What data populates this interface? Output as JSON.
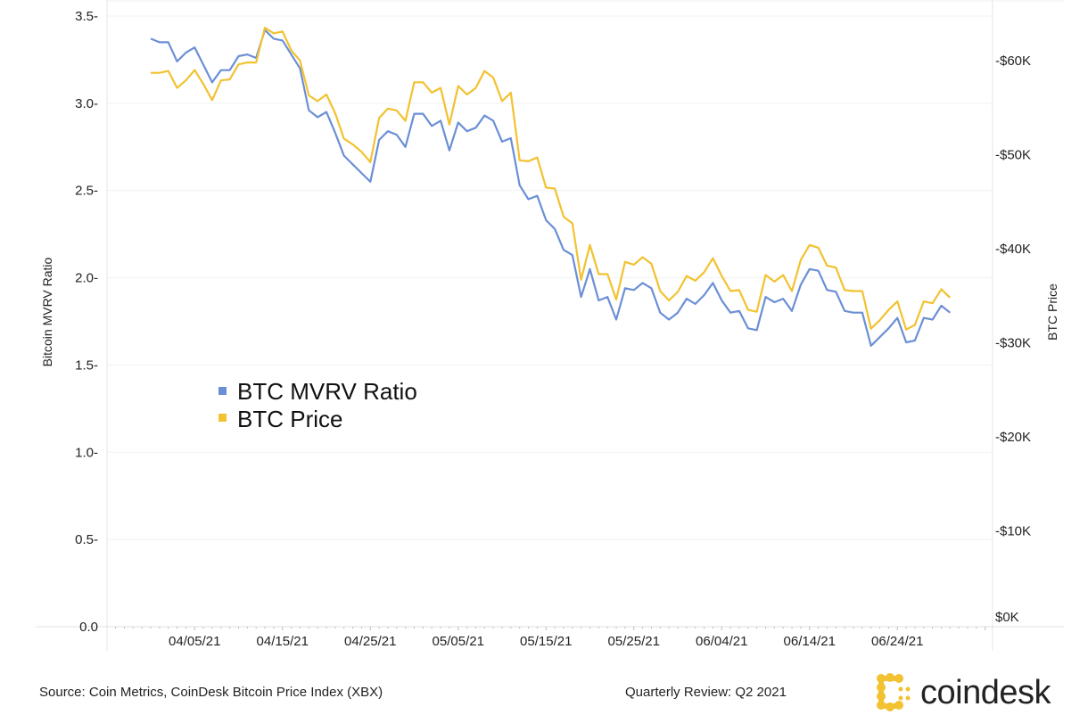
{
  "chart_data": {
    "type": "line",
    "title": "",
    "xlabel": "",
    "ylabel": "Bitcoin MVRV Ratio",
    "y2label": "BTC Price",
    "ylim": [
      0,
      3.5
    ],
    "y2lim": [
      0,
      60
    ],
    "y2_unit": "$K",
    "grid": true,
    "legend_position": "center-left",
    "x_tick_labels": [
      "04/05/21",
      "04/15/21",
      "04/25/21",
      "05/05/21",
      "05/15/21",
      "05/25/21",
      "06/04/21",
      "06/14/21",
      "06/24/21"
    ],
    "y_tick_labels": [
      "0.0",
      "0.5",
      "1.0",
      "1.5",
      "2.0",
      "2.5",
      "3.0",
      "3.5"
    ],
    "y2_tick_labels": [
      "$0K",
      "$10K",
      "$20K",
      "$30K",
      "$40K",
      "$50K",
      "$60K"
    ],
    "x": [
      "03/31/21",
      "04/01/21",
      "04/02/21",
      "04/03/21",
      "04/04/21",
      "04/05/21",
      "04/06/21",
      "04/07/21",
      "04/08/21",
      "04/09/21",
      "04/10/21",
      "04/11/21",
      "04/12/21",
      "04/13/21",
      "04/14/21",
      "04/15/21",
      "04/16/21",
      "04/17/21",
      "04/18/21",
      "04/19/21",
      "04/20/21",
      "04/21/21",
      "04/22/21",
      "04/23/21",
      "04/24/21",
      "04/25/21",
      "04/26/21",
      "04/27/21",
      "04/28/21",
      "04/29/21",
      "04/30/21",
      "05/01/21",
      "05/02/21",
      "05/03/21",
      "05/04/21",
      "05/05/21",
      "05/06/21",
      "05/07/21",
      "05/08/21",
      "05/09/21",
      "05/10/21",
      "05/11/21",
      "05/12/21",
      "05/13/21",
      "05/14/21",
      "05/15/21",
      "05/16/21",
      "05/17/21",
      "05/18/21",
      "05/19/21",
      "05/20/21",
      "05/21/21",
      "05/22/21",
      "05/23/21",
      "05/24/21",
      "05/25/21",
      "05/26/21",
      "05/27/21",
      "05/28/21",
      "05/29/21",
      "05/30/21",
      "05/31/21",
      "06/01/21",
      "06/02/21",
      "06/03/21",
      "06/04/21",
      "06/05/21",
      "06/06/21",
      "06/07/21",
      "06/08/21",
      "06/09/21",
      "06/10/21",
      "06/11/21",
      "06/12/21",
      "06/13/21",
      "06/14/21",
      "06/15/21",
      "06/16/21",
      "06/17/21",
      "06/18/21",
      "06/19/21",
      "06/20/21",
      "06/21/21",
      "06/22/21",
      "06/23/21",
      "06/24/21",
      "06/25/21",
      "06/26/21",
      "06/27/21",
      "06/28/21",
      "06/29/21",
      "06/30/21"
    ],
    "series": [
      {
        "name": "BTC MVRV Ratio",
        "axis": "left",
        "color": "#6b8fd6",
        "values": [
          3.37,
          3.35,
          3.35,
          3.24,
          3.29,
          3.32,
          3.22,
          3.12,
          3.19,
          3.19,
          3.27,
          3.28,
          3.26,
          3.42,
          3.37,
          3.36,
          3.28,
          3.2,
          2.96,
          2.92,
          2.95,
          2.83,
          2.7,
          2.65,
          2.6,
          2.55,
          2.79,
          2.84,
          2.82,
          2.75,
          2.94,
          2.94,
          2.87,
          2.9,
          2.73,
          2.89,
          2.84,
          2.86,
          2.93,
          2.9,
          2.78,
          2.8,
          2.53,
          2.45,
          2.47,
          2.33,
          2.28,
          2.16,
          2.13,
          1.89,
          2.05,
          1.87,
          1.89,
          1.76,
          1.94,
          1.93,
          1.97,
          1.94,
          1.8,
          1.76,
          1.8,
          1.88,
          1.85,
          1.9,
          1.97,
          1.87,
          1.8,
          1.81,
          1.71,
          1.7,
          1.89,
          1.86,
          1.88,
          1.81,
          1.96,
          2.05,
          2.04,
          1.93,
          1.92,
          1.81,
          1.8,
          1.8,
          1.61,
          1.66,
          1.71,
          1.77,
          1.63,
          1.64,
          1.77,
          1.76,
          1.84,
          1.8
        ]
      },
      {
        "name": "BTC Price",
        "axis": "right",
        "color": "#f2c230",
        "values": [
          58.7,
          58.7,
          58.9,
          57.1,
          57.9,
          59.0,
          57.5,
          55.8,
          57.9,
          58.0,
          59.6,
          59.8,
          59.8,
          63.5,
          62.9,
          63.1,
          61.1,
          60.0,
          56.3,
          55.7,
          56.4,
          54.4,
          51.7,
          51.1,
          50.3,
          49.2,
          53.9,
          54.9,
          54.7,
          53.6,
          57.7,
          57.7,
          56.6,
          57.1,
          53.2,
          57.3,
          56.4,
          57.1,
          58.9,
          58.2,
          55.7,
          56.6,
          49.4,
          49.3,
          49.7,
          46.5,
          46.4,
          43.4,
          42.7,
          36.7,
          40.4,
          37.3,
          37.3,
          34.6,
          38.6,
          38.3,
          39.1,
          38.4,
          35.5,
          34.5,
          35.4,
          37.1,
          36.6,
          37.5,
          39.0,
          37.1,
          35.5,
          35.6,
          33.5,
          33.3,
          37.2,
          36.5,
          37.2,
          35.5,
          38.8,
          40.4,
          40.1,
          38.2,
          38.0,
          35.6,
          35.5,
          35.5,
          31.5,
          32.4,
          33.5,
          34.4,
          31.4,
          31.9,
          34.4,
          34.2,
          35.7,
          34.8
        ]
      }
    ]
  },
  "footer": {
    "source": "Source: Coin Metrics, CoinDesk Bitcoin Price Index (XBX)",
    "review": "Quarterly Review: Q2 2021",
    "brand": "coindesk",
    "brand_color": "#f2c230"
  }
}
